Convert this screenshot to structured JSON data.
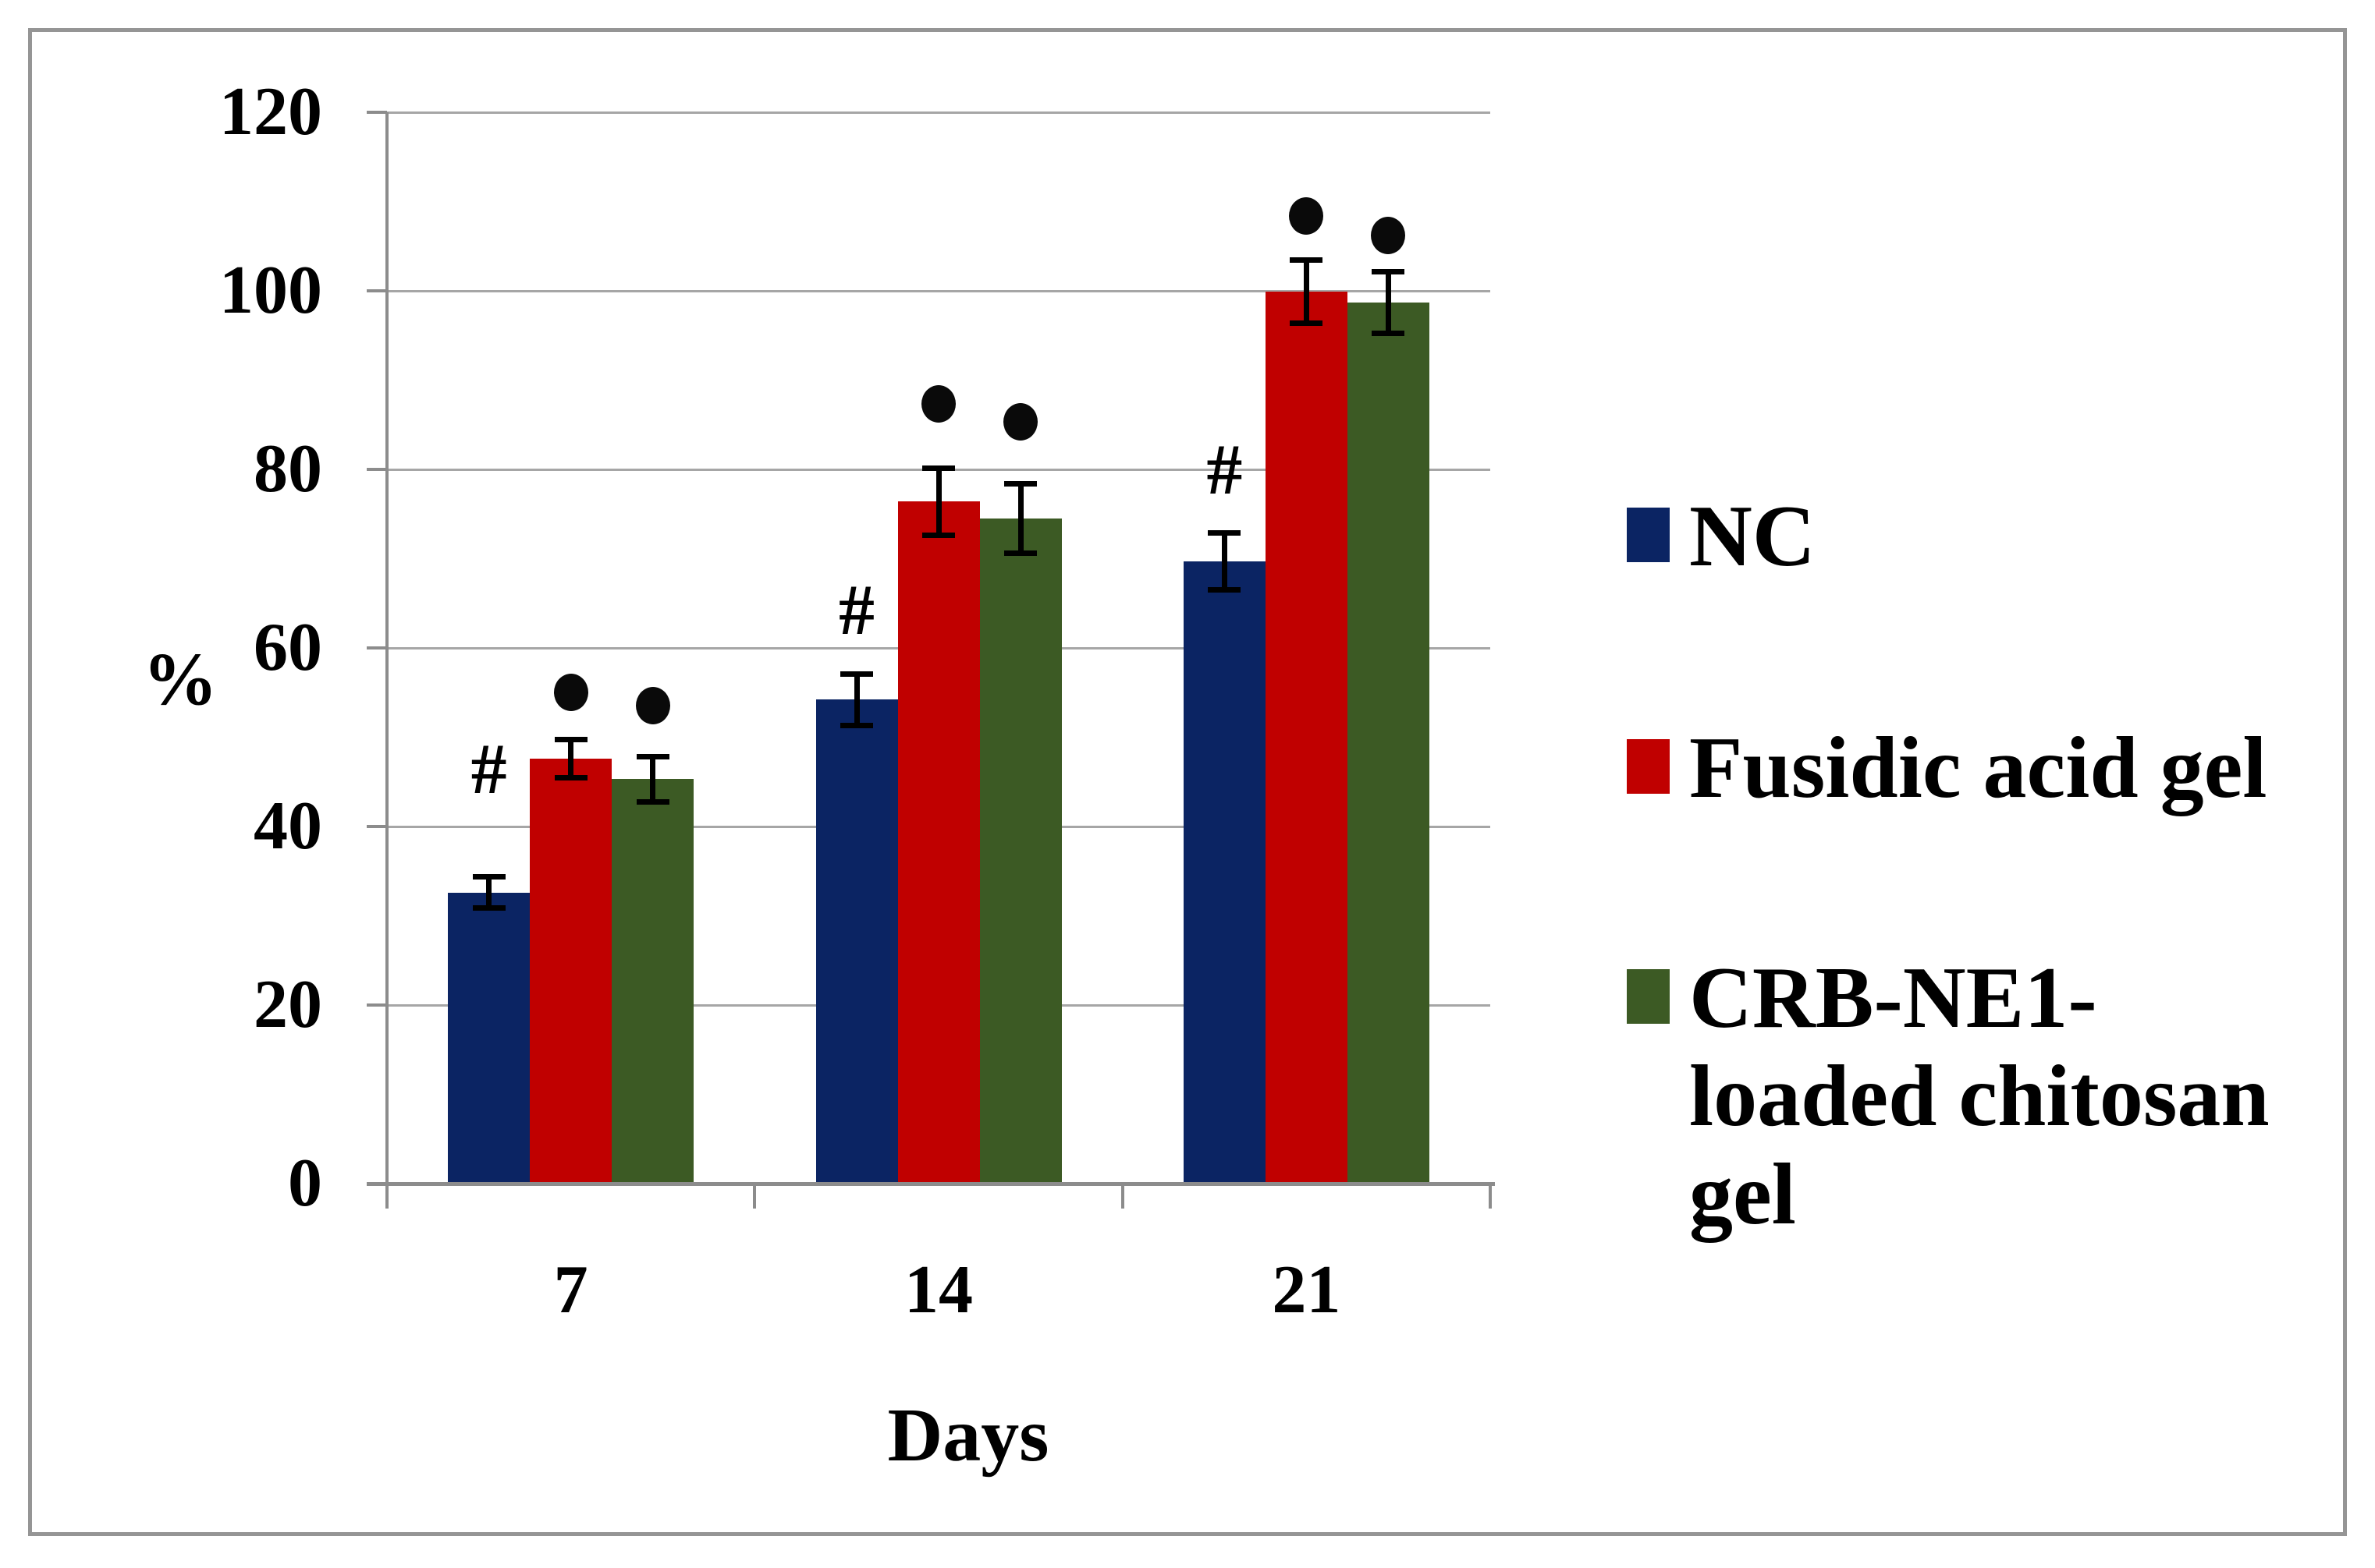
{
  "figure": {
    "background": "#ffffff",
    "border_color": "#959595"
  },
  "chart_data": {
    "type": "bar",
    "title": "",
    "xlabel": "Days",
    "ylabel": "%",
    "categories": [
      "7",
      "14",
      "21"
    ],
    "series": [
      {
        "name": "NC",
        "color": "#0b2463",
        "values": [
          32.6,
          54.2,
          69.7
        ],
        "errors": [
          1.8,
          2.9,
          3.2
        ],
        "annotation": "#",
        "annotation_y": [
          46.5,
          64.3,
          80.0
        ]
      },
      {
        "name": "Fusidic acid gel",
        "color": "#c00000",
        "values": [
          47.6,
          76.4,
          99.9
        ],
        "errors": [
          2.2,
          3.8,
          3.6
        ],
        "annotation": "●",
        "annotation_y": [
          55.0,
          87.3,
          108.4
        ]
      },
      {
        "name": "CRB-NE1-loaded chitosan gel",
        "color": "#3c5a24",
        "values": [
          45.3,
          74.5,
          98.7
        ],
        "errors": [
          2.6,
          3.9,
          3.5
        ],
        "annotation": "●",
        "annotation_y": [
          53.5,
          85.3,
          106.2
        ]
      }
    ],
    "yticks": [
      "0",
      "20",
      "40",
      "60",
      "80",
      "100",
      "120"
    ],
    "ylim": [
      0,
      120
    ],
    "grid": true,
    "gridline_color": "#a6a6a6",
    "axis_color": "#8c8c8c",
    "legend_position": "right"
  }
}
